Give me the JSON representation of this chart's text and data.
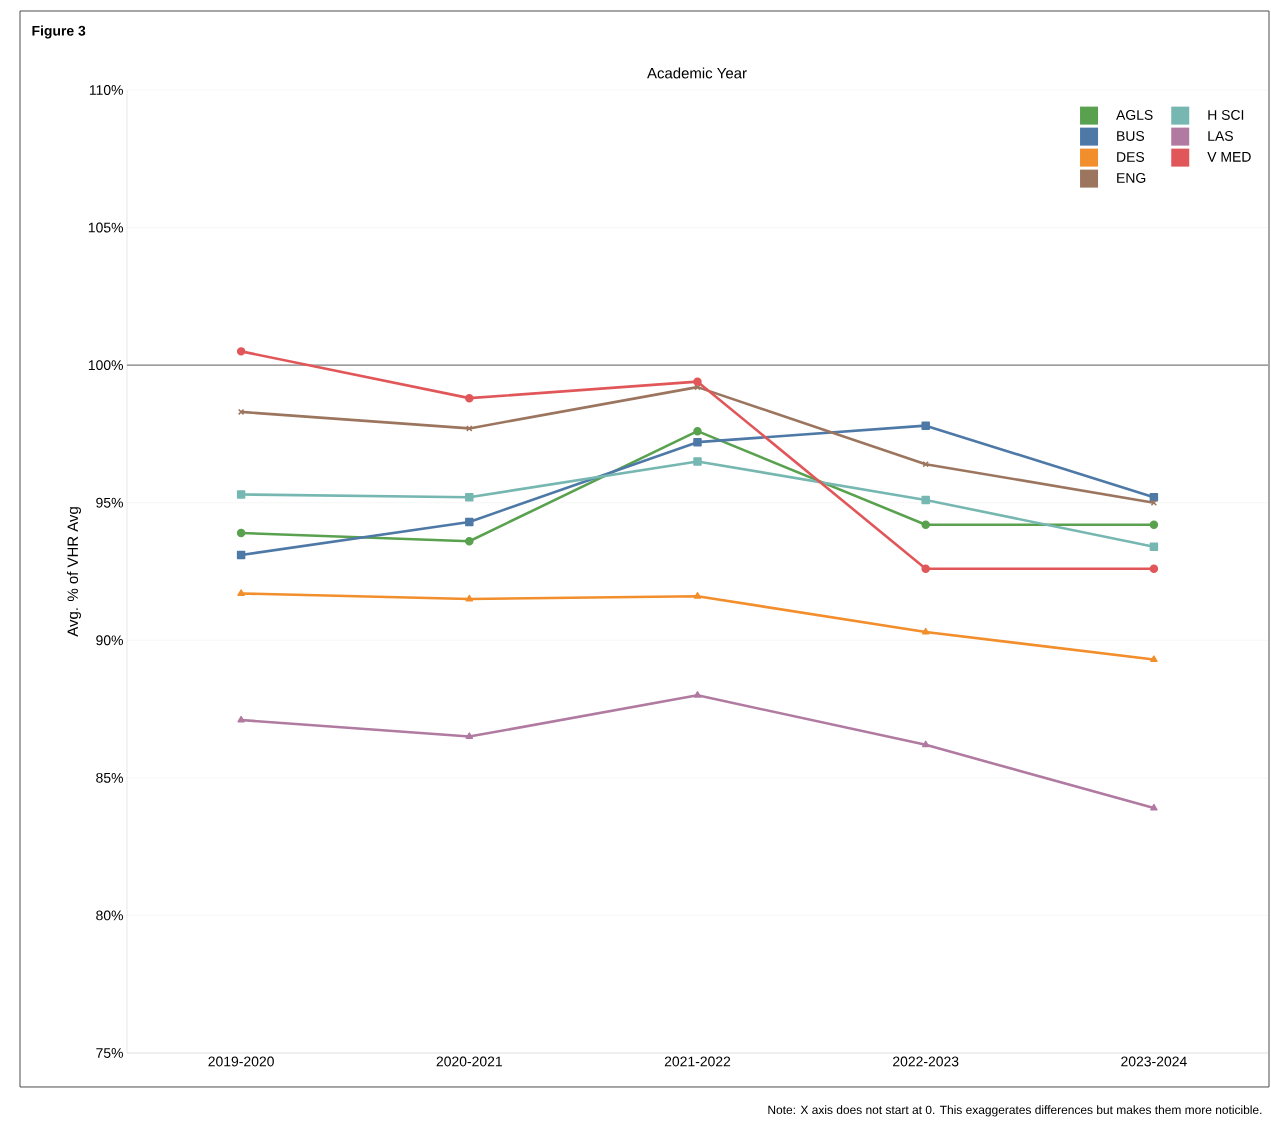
{
  "chart_data": {
    "type": "line",
    "title": "Figure 3",
    "xlabel": "Academic Year",
    "ylabel": "Avg. % of VHR Avg",
    "categories": [
      "2019-2020",
      "2020-2021",
      "2021-2022",
      "2022-2023",
      "2023-2024"
    ],
    "series": [
      {
        "name": "AGLS",
        "color": "#59a14f",
        "marker": "circle",
        "values": [
          93.9,
          93.6,
          97.6,
          94.2,
          94.2
        ]
      },
      {
        "name": "BUS",
        "color": "#4e79a7",
        "marker": "square",
        "values": [
          93.1,
          94.3,
          97.2,
          97.8,
          95.2
        ]
      },
      {
        "name": "DES",
        "color": "#f28e2b",
        "marker": "triangle",
        "values": [
          91.7,
          91.5,
          91.6,
          90.3,
          89.3
        ]
      },
      {
        "name": "ENG",
        "color": "#9c755f",
        "marker": "cross",
        "values": [
          98.3,
          97.7,
          99.2,
          96.4,
          95.0
        ]
      },
      {
        "name": "H SCI",
        "color": "#76b7b2",
        "marker": "square",
        "values": [
          95.3,
          95.2,
          96.5,
          95.1,
          93.4
        ]
      },
      {
        "name": "LAS",
        "color": "#b07aa1",
        "marker": "triangle",
        "values": [
          87.1,
          86.5,
          88.0,
          86.2,
          83.9
        ]
      },
      {
        "name": "V MED",
        "color": "#e15759",
        "marker": "circle",
        "values": [
          100.5,
          98.8,
          99.4,
          92.6,
          92.6
        ]
      }
    ],
    "ylim": [
      75,
      110
    ],
    "yticks": [
      {
        "value": 75,
        "label": "75%"
      },
      {
        "value": 80,
        "label": "80%"
      },
      {
        "value": 85,
        "label": "85%"
      },
      {
        "value": 90,
        "label": "90%"
      },
      {
        "value": 95,
        "label": "95%"
      },
      {
        "value": 100,
        "label": "100%"
      },
      {
        "value": 105,
        "label": "105%"
      },
      {
        "value": 110,
        "label": "110%"
      }
    ],
    "grid": "y",
    "legend": "top right",
    "line_style": "solid",
    "ref_lines": [
      {
        "axis": "y",
        "value": 100,
        "color": "#7f7f7f"
      }
    ],
    "annotations": [
      "Note: X axis does not start at 0. This exaggerates differences but makes them more noticible."
    ]
  }
}
